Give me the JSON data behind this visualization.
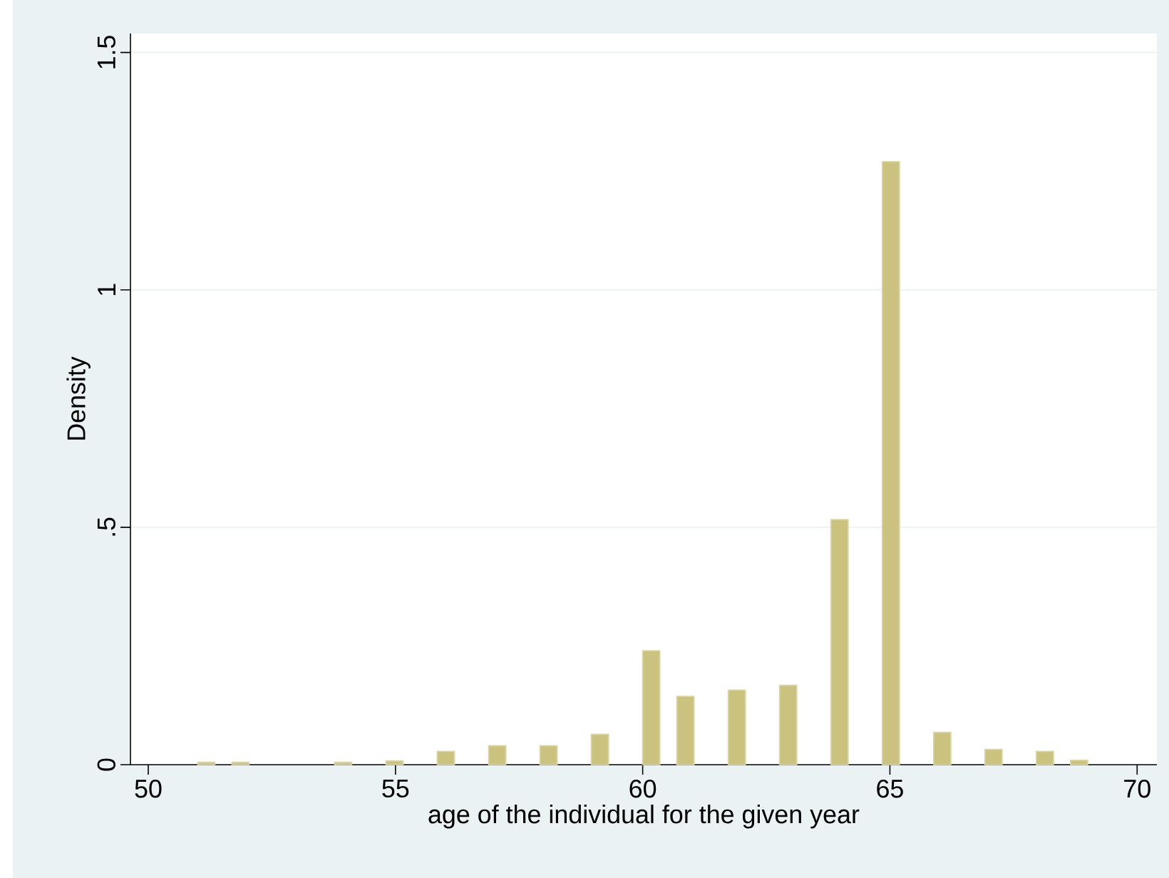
{
  "chart_data": {
    "type": "histogram",
    "xlabel": "age of the individual for the given year",
    "ylabel": "Density",
    "bins": [
      51.0,
      51.346,
      51.692,
      52.038,
      52.385,
      52.731,
      53.077,
      53.423,
      53.769,
      54.115,
      54.462,
      54.808,
      55.154,
      55.5,
      55.846,
      56.192,
      56.538,
      56.885,
      57.231,
      57.577,
      57.923,
      58.269,
      58.615,
      58.962,
      59.308,
      59.654,
      60.0,
      60.346,
      60.692,
      61.038,
      61.385,
      61.731,
      62.077,
      62.423,
      62.769,
      63.115,
      63.462,
      63.808,
      64.154,
      64.5,
      64.846,
      65.192,
      65.538,
      65.885,
      66.231,
      66.577,
      66.923,
      67.269,
      67.615,
      67.962,
      68.308,
      68.654,
      69.0
    ],
    "values": [
      0.005,
      0,
      0.005,
      0,
      0,
      0,
      0,
      0,
      0.005,
      0,
      0,
      0.008,
      0,
      0,
      0.028,
      0,
      0,
      0.04,
      0,
      0,
      0.04,
      0,
      0,
      0.064,
      0,
      0,
      0.24,
      0,
      0.144,
      0,
      0,
      0.157,
      0,
      0,
      0.167,
      0,
      0,
      0.516,
      0,
      0,
      1.27,
      0,
      0,
      0.068,
      0,
      0,
      0.032,
      0,
      0,
      0.028,
      0,
      0.009
    ],
    "color": "#cbc27f",
    "xlim": [
      49.64,
      70.4
    ],
    "ylim": [
      0,
      1.54
    ],
    "xticks": [
      50,
      55,
      60,
      65,
      70
    ],
    "yticks": [
      0,
      {
        "value": 0.5,
        "label": ".5"
      },
      1,
      1.5
    ],
    "grid": "y"
  }
}
